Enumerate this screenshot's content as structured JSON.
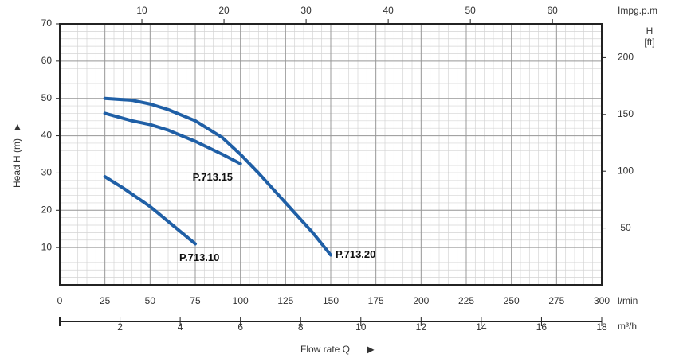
{
  "chart_data": {
    "type": "line",
    "y_label": "Head H (m)",
    "x_label": "Flow rate Q",
    "x_unit": "l/min",
    "xlim": [
      0,
      300
    ],
    "xticks": [
      0,
      25,
      50,
      75,
      100,
      125,
      150,
      175,
      200,
      225,
      250,
      275,
      300
    ],
    "ylim": [
      0,
      70
    ],
    "yticks": [
      10,
      20,
      30,
      40,
      50,
      60,
      70
    ],
    "x2_unit": "m³/h",
    "x2lim": [
      0,
      18
    ],
    "x2ticks": [
      2,
      4,
      6,
      8,
      10,
      12,
      14,
      16,
      18
    ],
    "x3_unit": "Impg.p.m",
    "x3lim": [
      0,
      66
    ],
    "x3ticks": [
      10,
      20,
      30,
      40,
      50,
      60
    ],
    "y2_label": [
      "H",
      "[ft]"
    ],
    "y2lim": [
      0,
      229.7
    ],
    "y2ticks": [
      50,
      100,
      150,
      200
    ],
    "grid": true,
    "series": [
      {
        "name": "P.713.20",
        "color": "#1f5fa6",
        "x": [
          25,
          40,
          50,
          60,
          75,
          90,
          100,
          110,
          125,
          140,
          150
        ],
        "values": [
          50,
          49.5,
          48.5,
          47,
          44,
          39.5,
          35,
          30,
          22,
          14,
          8
        ]
      },
      {
        "name": "P.713.15",
        "color": "#1f5fa6",
        "x": [
          25,
          40,
          50,
          60,
          75,
          90,
          100
        ],
        "values": [
          46,
          44,
          43,
          41.5,
          38.5,
          35,
          32.5
        ]
      },
      {
        "name": "P.713.10",
        "color": "#1f5fa6",
        "x": [
          25,
          35,
          50,
          60,
          75
        ],
        "values": [
          29,
          26,
          21,
          17,
          11
        ]
      }
    ]
  }
}
